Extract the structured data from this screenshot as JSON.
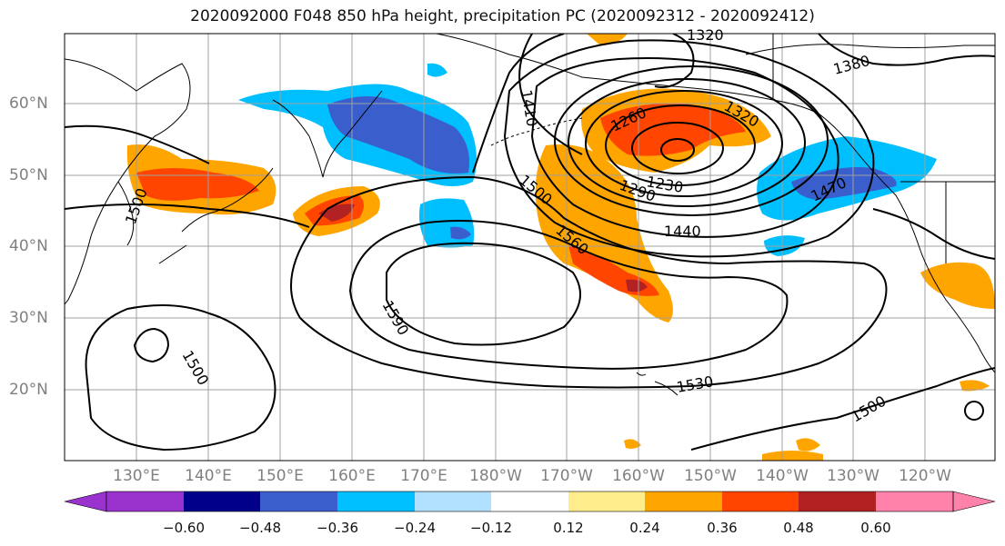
{
  "title": "2020092000 F048 850 hPa height, precipitation PC (2020092312 - 2020092412)",
  "lat_labels": [
    "60°N",
    "50°N",
    "40°N",
    "30°N",
    "20°N"
  ],
  "lon_labels": [
    "130°E",
    "140°E",
    "150°E",
    "160°E",
    "170°E",
    "180°W",
    "170°W",
    "160°W",
    "150°W",
    "140°W",
    "130°W",
    "120°W"
  ],
  "contour_labels": [
    "1320",
    "1380",
    "1410",
    "1260",
    "1320",
    "1230",
    "1290",
    "1500",
    "1470",
    "1440",
    "1560",
    "1590",
    "1500",
    "1530",
    "1500",
    "1500"
  ],
  "colorbar": {
    "ticks": [
      "−0.60",
      "−0.48",
      "−0.36",
      "−0.24",
      "−0.12",
      "0.12",
      "0.24",
      "0.36",
      "0.48",
      "0.60"
    ],
    "colors": [
      "#9a32cd",
      "#00008b",
      "#3a5fcd",
      "#00bfff",
      "#b2e0ff",
      "#ffffff",
      "#ffec8b",
      "#ffa500",
      "#ff4500",
      "#b22222",
      "#ff82ab"
    ]
  },
  "colors": {
    "contour": "#000000",
    "coastline": "#000000",
    "grid": "#a0a0a0",
    "tick_label": "#808080"
  }
}
